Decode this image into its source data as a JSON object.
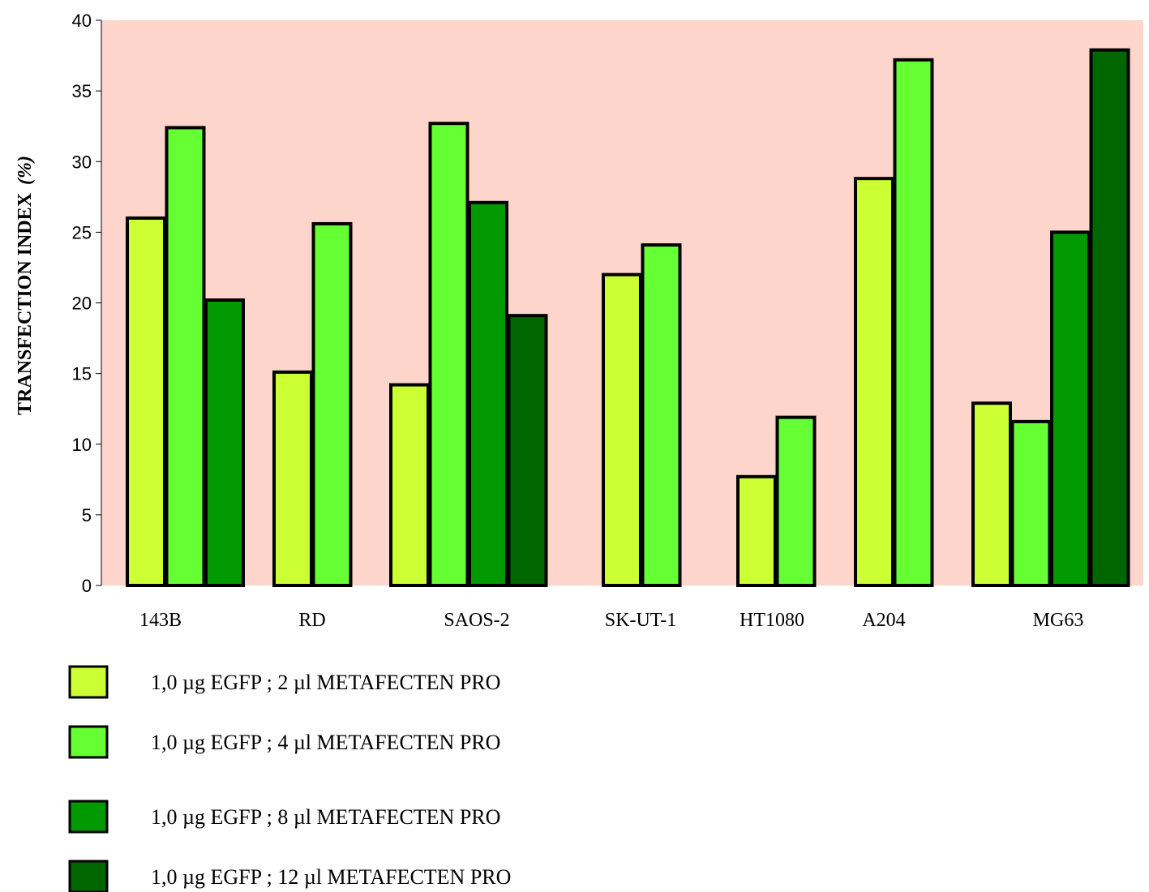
{
  "chart_data": {
    "type": "bar",
    "title": "",
    "xlabel": "",
    "ylabel": "TRANSFECTION INDEX",
    "ylabel_unit": "(%)",
    "ylim": [
      0,
      40
    ],
    "yticks": [
      0,
      5,
      10,
      15,
      20,
      25,
      30,
      35,
      40
    ],
    "grid": false,
    "plot_background": "#FDD5CB",
    "legend_position": "bottom",
    "categories": [
      "143B",
      "RD",
      "SAOS-2",
      "SK-UT-1",
      "HT1080",
      "A204",
      "MG63"
    ],
    "series": [
      {
        "name": "1,0  µg EGFP ; 2 µl METAFECTEN PRO",
        "color": "#CCFF33",
        "values": [
          26.0,
          15.1,
          14.2,
          22.0,
          7.7,
          28.8,
          12.9
        ]
      },
      {
        "name": "1,0  µg EGFP ; 4 µl METAFECTEN PRO",
        "color": "#66FF33",
        "values": [
          32.4,
          25.6,
          32.7,
          24.1,
          11.9,
          37.2,
          11.6
        ]
      },
      {
        "name": "1,0  µg EGFP ; 8 µl METAFECTEN PRO",
        "color": "#009900",
        "values": [
          20.2,
          null,
          27.1,
          null,
          null,
          null,
          25.0
        ]
      },
      {
        "name": "1,0  µg EGFP ; 12 µl METAFECTEN PRO",
        "color": "#006600",
        "values": [
          null,
          null,
          19.1,
          null,
          null,
          null,
          37.9
        ]
      }
    ]
  }
}
